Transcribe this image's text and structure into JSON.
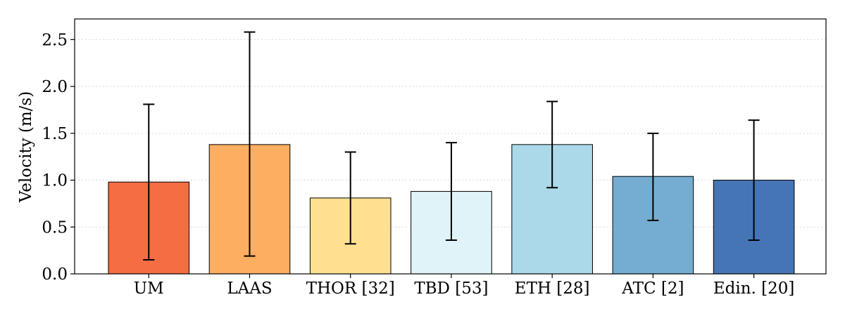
{
  "chart_data": {
    "type": "bar",
    "title": "",
    "xlabel": "",
    "ylabel": "Velocity (m/s)",
    "ylim": [
      0,
      2.72
    ],
    "yticks": [
      0.0,
      0.5,
      1.0,
      1.5,
      2.0,
      2.5
    ],
    "ytick_labels": [
      "0.0",
      "0.5",
      "1.0",
      "1.5",
      "2.0",
      "2.5"
    ],
    "grid": "horizontal, dotted",
    "categories": [
      "UM",
      "LAAS",
      "THOR [32]",
      "TBD [53]",
      "ETH [28]",
      "ATC [2]",
      "Edin. [20]"
    ],
    "values": [
      0.98,
      1.38,
      0.81,
      0.88,
      1.38,
      1.04,
      1.0
    ],
    "error_low": [
      0.15,
      0.19,
      0.32,
      0.36,
      0.92,
      0.57,
      0.36
    ],
    "error_high": [
      1.81,
      2.58,
      1.3,
      1.4,
      1.84,
      1.5,
      1.64
    ],
    "colors": [
      "#f46d43",
      "#fdae61",
      "#fee090",
      "#e0f3f8",
      "#abd9e9",
      "#74add1",
      "#4575b4"
    ]
  }
}
